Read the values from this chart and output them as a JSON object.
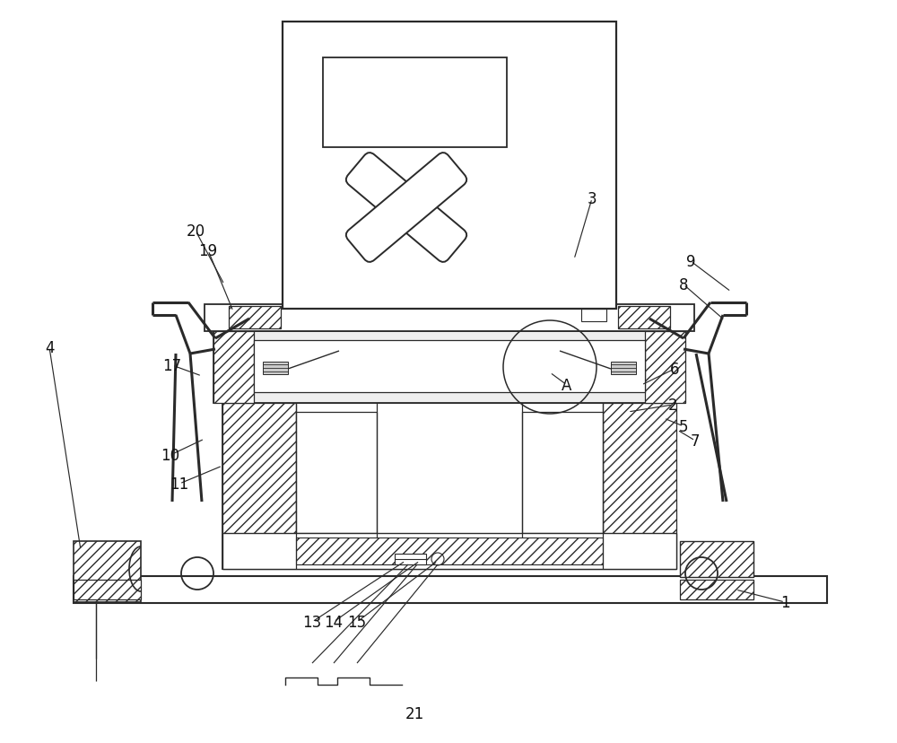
{
  "bg": "#ffffff",
  "lc": "#2a2a2a",
  "fig_w": 10.0,
  "fig_h": 8.29,
  "dpi": 100
}
